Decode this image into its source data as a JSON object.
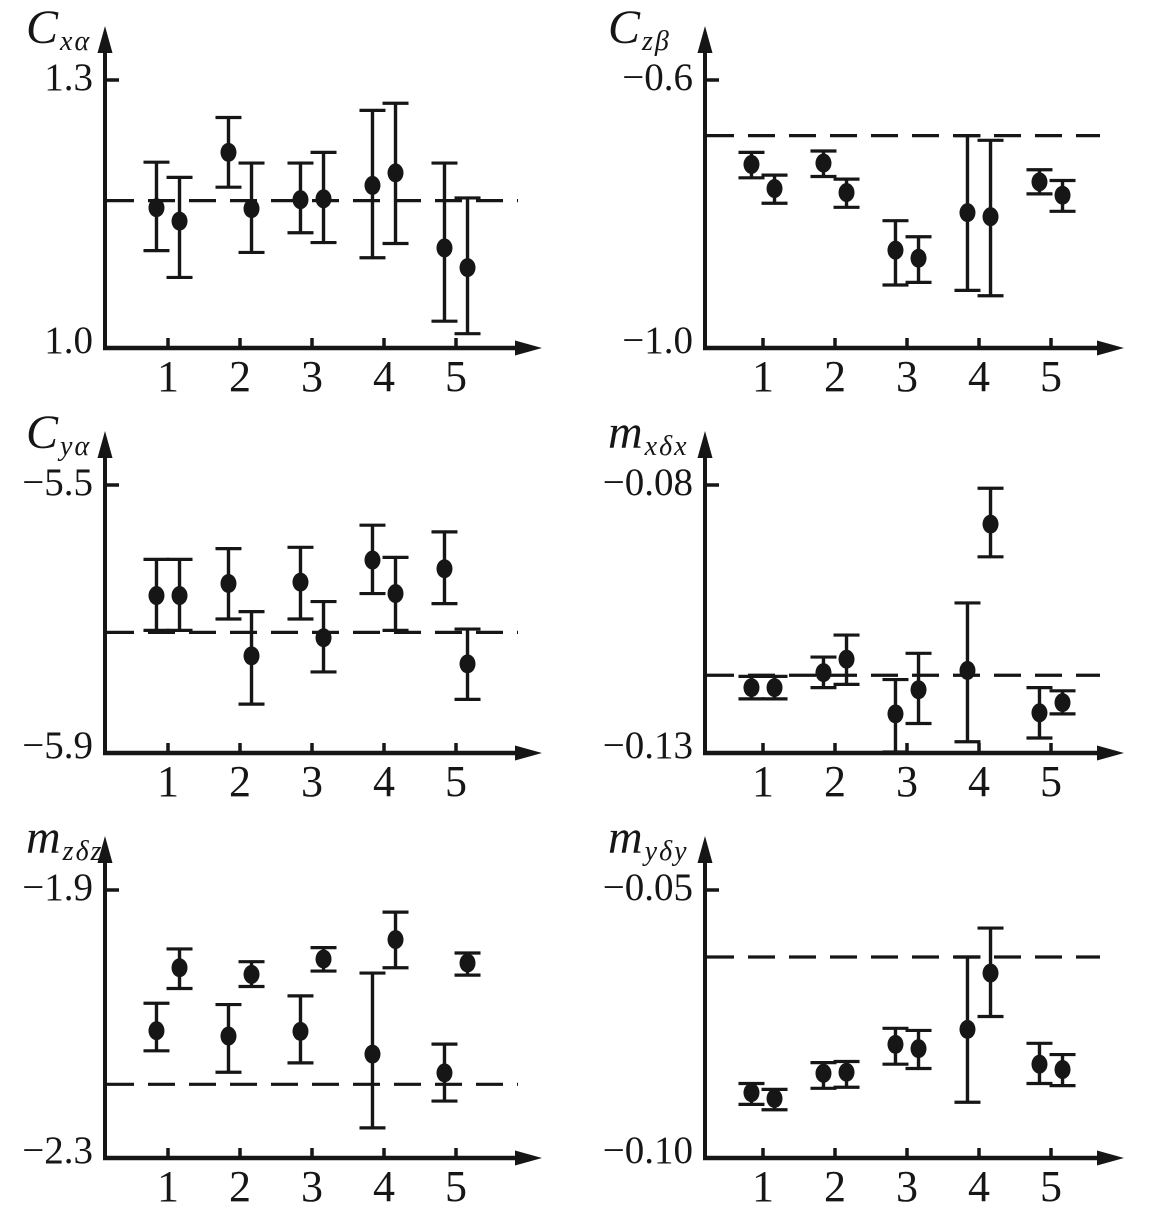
{
  "page": {
    "background": "#ffffff",
    "ink": "#161616",
    "figure_type": "six-panel error-bar scatter figure with dashed reference lines"
  },
  "chart_data": [
    {
      "id": "cxa",
      "type": "scatter",
      "ylabel": {
        "main": "C",
        "sub": "xα"
      },
      "yticks": [
        {
          "value": 1.3,
          "label": "1.3"
        },
        {
          "value": 1.0,
          "label": "1.0"
        }
      ],
      "ylim": [
        1.0,
        1.3
      ],
      "xticks": [
        "1",
        "2",
        "3",
        "4",
        "5"
      ],
      "grid": false,
      "legend": null,
      "dashed_reference": 1.165,
      "points": [
        {
          "x": 0.84,
          "y": 1.157,
          "lo": 1.109,
          "hi": 1.208
        },
        {
          "x": 1.16,
          "y": 1.142,
          "lo": 1.079,
          "hi": 1.191
        },
        {
          "x": 1.84,
          "y": 1.219,
          "lo": 1.18,
          "hi": 1.258
        },
        {
          "x": 2.16,
          "y": 1.156,
          "lo": 1.107,
          "hi": 1.207
        },
        {
          "x": 2.84,
          "y": 1.166,
          "lo": 1.129,
          "hi": 1.207
        },
        {
          "x": 3.16,
          "y": 1.167,
          "lo": 1.118,
          "hi": 1.219
        },
        {
          "x": 3.84,
          "y": 1.182,
          "lo": 1.101,
          "hi": 1.266
        },
        {
          "x": 4.16,
          "y": 1.196,
          "lo": 1.117,
          "hi": 1.274
        },
        {
          "x": 4.84,
          "y": 1.112,
          "lo": 1.03,
          "hi": 1.207
        },
        {
          "x": 5.16,
          "y": 1.09,
          "lo": 1.016,
          "hi": 1.168
        }
      ]
    },
    {
      "id": "czb",
      "type": "scatter",
      "ylabel": {
        "main": "C",
        "sub": "zβ"
      },
      "yticks": [
        {
          "value": -0.6,
          "label": "−0.6"
        },
        {
          "value": -1.0,
          "label": "−1.0"
        }
      ],
      "ylim": [
        -1.0,
        -0.6
      ],
      "xticks": [
        "1",
        "2",
        "3",
        "4",
        "5"
      ],
      "grid": false,
      "legend": null,
      "dashed_reference": -0.683,
      "points": [
        {
          "x": 0.84,
          "y": -0.726,
          "lo": -0.746,
          "hi": -0.708
        },
        {
          "x": 1.16,
          "y": -0.762,
          "lo": -0.784,
          "hi": -0.742
        },
        {
          "x": 1.84,
          "y": -0.724,
          "lo": -0.744,
          "hi": -0.706
        },
        {
          "x": 2.16,
          "y": -0.768,
          "lo": -0.79,
          "hi": -0.748
        },
        {
          "x": 2.84,
          "y": -0.854,
          "lo": -0.906,
          "hi": -0.81
        },
        {
          "x": 3.16,
          "y": -0.866,
          "lo": -0.902,
          "hi": -0.834
        },
        {
          "x": 3.84,
          "y": -0.798,
          "lo": -0.914,
          "hi": -0.683
        },
        {
          "x": 4.16,
          "y": -0.804,
          "lo": -0.922,
          "hi": -0.69
        },
        {
          "x": 4.84,
          "y": -0.752,
          "lo": -0.77,
          "hi": -0.734
        },
        {
          "x": 5.16,
          "y": -0.772,
          "lo": -0.796,
          "hi": -0.75
        }
      ]
    },
    {
      "id": "cya",
      "type": "scatter",
      "ylabel": {
        "main": "C",
        "sub": "yα"
      },
      "yticks": [
        {
          "value": -5.5,
          "label": "−5.5"
        },
        {
          "value": -5.9,
          "label": "−5.9"
        }
      ],
      "ylim": [
        -5.9,
        -5.5
      ],
      "xticks": [
        "1",
        "2",
        "3",
        "4",
        "5"
      ],
      "grid": false,
      "legend": null,
      "dashed_reference": -5.72,
      "points": [
        {
          "x": 0.84,
          "y": -5.665,
          "lo": -5.717,
          "hi": -5.611
        },
        {
          "x": 1.16,
          "y": -5.665,
          "lo": -5.717,
          "hi": -5.611
        },
        {
          "x": 1.84,
          "y": -5.647,
          "lo": -5.7,
          "hi": -5.595
        },
        {
          "x": 2.16,
          "y": -5.755,
          "lo": -5.827,
          "hi": -5.689
        },
        {
          "x": 2.84,
          "y": -5.645,
          "lo": -5.7,
          "hi": -5.593
        },
        {
          "x": 3.16,
          "y": -5.728,
          "lo": -5.779,
          "hi": -5.674
        },
        {
          "x": 3.84,
          "y": -5.612,
          "lo": -5.662,
          "hi": -5.56
        },
        {
          "x": 4.16,
          "y": -5.662,
          "lo": -5.717,
          "hi": -5.608
        },
        {
          "x": 4.84,
          "y": -5.625,
          "lo": -5.677,
          "hi": -5.57
        },
        {
          "x": 5.16,
          "y": -5.767,
          "lo": -5.82,
          "hi": -5.715
        }
      ]
    },
    {
      "id": "mxdx",
      "type": "scatter",
      "ylabel": {
        "main": "m",
        "sub": "xδx"
      },
      "yticks": [
        {
          "value": -0.08,
          "label": "−0.08"
        },
        {
          "value": -0.13,
          "label": "−0.13"
        }
      ],
      "ylim": [
        -0.13,
        -0.08
      ],
      "xticks": [
        "1",
        "2",
        "3",
        "4",
        "5"
      ],
      "grid": false,
      "legend": null,
      "dashed_reference": -0.1155,
      "points": [
        {
          "x": 0.84,
          "y": -0.1178,
          "lo": -0.1199,
          "hi": -0.1157
        },
        {
          "x": 1.16,
          "y": -0.1178,
          "lo": -0.1199,
          "hi": -0.1157
        },
        {
          "x": 1.84,
          "y": -0.115,
          "lo": -0.1178,
          "hi": -0.1121
        },
        {
          "x": 2.16,
          "y": -0.1125,
          "lo": -0.1172,
          "hi": -0.108
        },
        {
          "x": 2.84,
          "y": -0.1227,
          "lo": -0.1298,
          "hi": -0.1163
        },
        {
          "x": 3.16,
          "y": -0.1182,
          "lo": -0.1245,
          "hi": -0.1114
        },
        {
          "x": 3.84,
          "y": -0.1146,
          "lo": -0.1279,
          "hi": -0.102
        },
        {
          "x": 4.16,
          "y": -0.0873,
          "lo": -0.0934,
          "hi": -0.0806
        },
        {
          "x": 4.84,
          "y": -0.1225,
          "lo": -0.1272,
          "hi": -0.1178
        },
        {
          "x": 5.16,
          "y": -0.1206,
          "lo": -0.1227,
          "hi": -0.1184
        }
      ]
    },
    {
      "id": "mzdz",
      "type": "scatter",
      "ylabel": {
        "main": "m",
        "sub": "zδz"
      },
      "yticks": [
        {
          "value": -1.9,
          "label": "−1.9"
        },
        {
          "value": -2.3,
          "label": "−2.3"
        }
      ],
      "ylim": [
        -2.3,
        -1.9
      ],
      "xticks": [
        "1",
        "2",
        "3",
        "4",
        "5"
      ],
      "grid": false,
      "legend": null,
      "dashed_reference": -2.19,
      "points": [
        {
          "x": 0.84,
          "y": -2.11,
          "lo": -2.14,
          "hi": -2.069
        },
        {
          "x": 1.16,
          "y": -2.016,
          "lo": -2.047,
          "hi": -1.988
        },
        {
          "x": 1.84,
          "y": -2.118,
          "lo": -2.172,
          "hi": -2.071
        },
        {
          "x": 2.16,
          "y": -2.026,
          "lo": -2.044,
          "hi": -2.007
        },
        {
          "x": 2.84,
          "y": -2.111,
          "lo": -2.158,
          "hi": -2.058
        },
        {
          "x": 3.16,
          "y": -2.003,
          "lo": -2.021,
          "hi": -1.986
        },
        {
          "x": 3.84,
          "y": -2.145,
          "lo": -2.255,
          "hi": -2.024
        },
        {
          "x": 4.16,
          "y": -1.974,
          "lo": -2.016,
          "hi": -1.933
        },
        {
          "x": 4.84,
          "y": -2.173,
          "lo": -2.215,
          "hi": -2.13
        },
        {
          "x": 5.16,
          "y": -2.009,
          "lo": -2.027,
          "hi": -1.994
        }
      ]
    },
    {
      "id": "mydy",
      "type": "scatter",
      "ylabel": {
        "main": "m",
        "sub": "yδy"
      },
      "yticks": [
        {
          "value": -0.05,
          "label": "−0.05"
        },
        {
          "value": -0.1,
          "label": "−0.10"
        }
      ],
      "ylim": [
        -0.1,
        -0.05
      ],
      "xticks": [
        "1",
        "2",
        "3",
        "4",
        "5"
      ],
      "grid": false,
      "legend": null,
      "dashed_reference": -0.0625,
      "points": [
        {
          "x": 0.84,
          "y": -0.0878,
          "lo": -0.09,
          "hi": -0.0861
        },
        {
          "x": 1.16,
          "y": -0.0889,
          "lo": -0.091,
          "hi": -0.0872
        },
        {
          "x": 1.84,
          "y": -0.0842,
          "lo": -0.087,
          "hi": -0.0822
        },
        {
          "x": 2.16,
          "y": -0.084,
          "lo": -0.0868,
          "hi": -0.082
        },
        {
          "x": 2.84,
          "y": -0.0788,
          "lo": -0.0825,
          "hi": -0.0758
        },
        {
          "x": 3.16,
          "y": -0.0796,
          "lo": -0.0833,
          "hi": -0.0762
        },
        {
          "x": 3.84,
          "y": -0.076,
          "lo": -0.0896,
          "hi": -0.0625
        },
        {
          "x": 4.16,
          "y": -0.0655,
          "lo": -0.0736,
          "hi": -0.0571
        },
        {
          "x": 4.84,
          "y": -0.0825,
          "lo": -0.0861,
          "hi": -0.0786
        },
        {
          "x": 5.16,
          "y": -0.0835,
          "lo": -0.0865,
          "hi": -0.0807
        }
      ]
    }
  ]
}
